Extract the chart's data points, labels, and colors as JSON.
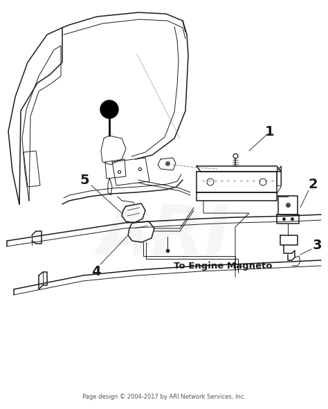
{
  "bg_color": "#ffffff",
  "fig_width": 4.74,
  "fig_height": 5.91,
  "dpi": 100,
  "footer_text": "Page design © 2004-2017 by ARI Network Services, Inc.",
  "footer_fontsize": 6.0,
  "footer_color": "#555555",
  "watermark_text": "ARI",
  "watermark_alpha": 0.12,
  "watermark_fontsize": 72,
  "watermark_color": "#bbbbbb",
  "label_1_text": "1",
  "label_2_text": "2",
  "label_3_text": "3",
  "label_4_text": "4",
  "label_5_text": "5",
  "magneto_text": "To Engine Magneto",
  "label_fontsize": 14,
  "magneto_fontsize": 9.5,
  "line_color": "#1a1a1a",
  "line_color_light": "#555555"
}
